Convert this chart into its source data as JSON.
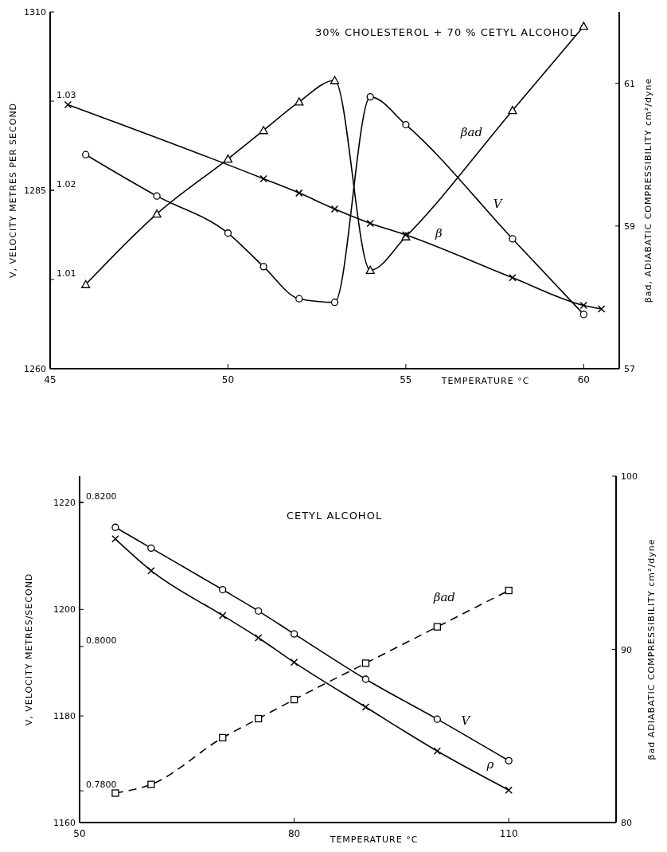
{
  "chart_data": [
    {
      "type": "line",
      "title": "30% CHOLESTEROL + 70 % CETYL ALCOHOL",
      "xlabel": "TEMPERATURE °C",
      "ylabel": "V, VELOCITY METRES PER SECOND",
      "y2label": "βad, ADIABATIC COMPRESSIBILITY cm²/dyne",
      "xlim": [
        45,
        61
      ],
      "xticks": [
        45,
        50,
        55,
        60
      ],
      "ylim": [
        1260,
        1310
      ],
      "yticks": [
        1260,
        1285,
        1310
      ],
      "y3lim": [
        1.0,
        1.04
      ],
      "y3ticks": [
        1.01,
        1.02,
        1.03
      ],
      "y2lim": [
        57,
        62
      ],
      "y2ticks": [
        57,
        59,
        61
      ],
      "series": [
        {
          "name": "V",
          "color": "#000000",
          "marker": "circle",
          "line_style": "solid",
          "x": [
            46,
            48,
            50,
            51,
            52,
            53,
            54,
            55,
            58,
            60
          ],
          "values": [
            1290,
            1284.2,
            1279,
            1274.3,
            1269.8,
            1269.3,
            1298.1,
            1294.2,
            1278.2,
            1267.6
          ]
        },
        {
          "name": "βad",
          "color": "#000000",
          "marker": "triangle",
          "line_style": "solid",
          "axis": "y2",
          "x": [
            46,
            48,
            50,
            51,
            52,
            53,
            54,
            55,
            58,
            60
          ],
          "values": [
            58.18,
            59.17,
            59.94,
            60.34,
            60.74,
            61.04,
            58.38,
            58.85,
            60.62,
            61.8
          ]
        },
        {
          "name": "β",
          "color": "#000000",
          "marker": "cross",
          "line_style": "solid",
          "axis": "y3",
          "x": [
            45.5,
            51,
            52,
            53,
            54,
            55,
            58,
            60,
            60.5
          ],
          "values": [
            1.0296,
            1.0213,
            1.0197,
            1.0179,
            1.0163,
            1.015,
            1.0102,
            1.0071,
            1.0067
          ]
        }
      ]
    },
    {
      "type": "line",
      "title": "CETYL ALCOHOL",
      "xlabel": "TEMPERATURE °C",
      "ylabel": "V, VELOCITY METRES/SECOND",
      "y2label": "βad ADIABATIC COMPRESSIBILITY cm²/dyne",
      "xlim": [
        50,
        125
      ],
      "xticks": [
        50,
        80,
        110
      ],
      "ylim": [
        1160,
        1225
      ],
      "yticks": [
        1160,
        1180,
        1200,
        1220
      ],
      "y3lim": [
        0.7756,
        0.8236
      ],
      "y3ticks": [
        {
          "value": 0.78,
          "label": "0.7800"
        },
        {
          "value": 0.8,
          "label": "0.8000"
        },
        {
          "value": 0.82,
          "label": "0.8200"
        }
      ],
      "y2lim": [
        80,
        100
      ],
      "y2ticks": [
        80,
        90,
        100
      ],
      "series": [
        {
          "name": "V",
          "color": "#000000",
          "marker": "circle",
          "line_style": "solid",
          "x": [
            55,
            60,
            70,
            75,
            80,
            90,
            100,
            110
          ],
          "values": [
            1215.4,
            1211.5,
            1203.7,
            1199.7,
            1195.4,
            1186.9,
            1179.4,
            1171.6
          ]
        },
        {
          "name": "ρ",
          "color": "#000000",
          "marker": "cross",
          "line_style": "solid",
          "axis": "y3",
          "x": [
            55,
            60,
            70,
            75,
            80,
            90,
            100,
            110
          ],
          "values": [
            0.8149,
            0.8105,
            0.8043,
            0.8012,
            0.7978,
            0.7916,
            0.7855,
            0.7801
          ]
        },
        {
          "name": "βad",
          "color": "#000000",
          "marker": "square",
          "line_style": "dashed",
          "axis": "y2",
          "x": [
            55,
            60,
            70,
            75,
            80,
            90,
            100,
            110
          ],
          "values": [
            81.7,
            82.2,
            84.9,
            86,
            87.1,
            89.2,
            91.3,
            93.4
          ]
        }
      ]
    }
  ]
}
